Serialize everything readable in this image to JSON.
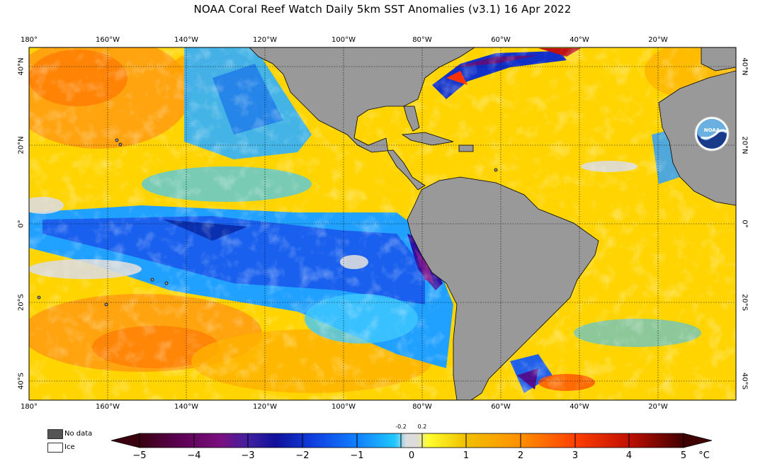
{
  "title": "NOAA Coral Reef Watch Daily 5km SST Anomalies  (v3.1)   16 Apr 2022",
  "map": {
    "lon_labels": [
      "180°",
      "160°W",
      "140°W",
      "120°W",
      "100°W",
      "80°W",
      "60°W",
      "40°W",
      "20°W"
    ],
    "lat_labels": [
      "40°N",
      "20°N",
      "0°",
      "20°S",
      "40°S"
    ],
    "extent": {
      "lon": [
        -180,
        0
      ],
      "lat": [
        -45,
        45
      ]
    },
    "land_color": "#999999",
    "logo": "noaa-logo"
  },
  "legend": {
    "nodata_label": "No data",
    "nodata_color": "#555555",
    "ice_label": "Ice",
    "ice_color": "#ffffff"
  },
  "colorbar": {
    "unit": "°C",
    "ticks": [
      "−5",
      "−4",
      "−3",
      "−2",
      "−1",
      "0",
      "1",
      "2",
      "3",
      "4",
      "5"
    ],
    "small_labels": [
      "-0.2",
      "0.2"
    ],
    "range": [
      -5,
      5
    ],
    "colors": [
      "#3a0010",
      "#5a0050",
      "#7a1080",
      "#4020a0",
      "#1010c0",
      "#1040e0",
      "#1080ff",
      "#20c0ff",
      "#dcdcdc",
      "#ffff30",
      "#f0c000",
      "#ff9000",
      "#ff5000",
      "#e02000",
      "#a00000",
      "#400000"
    ]
  }
}
